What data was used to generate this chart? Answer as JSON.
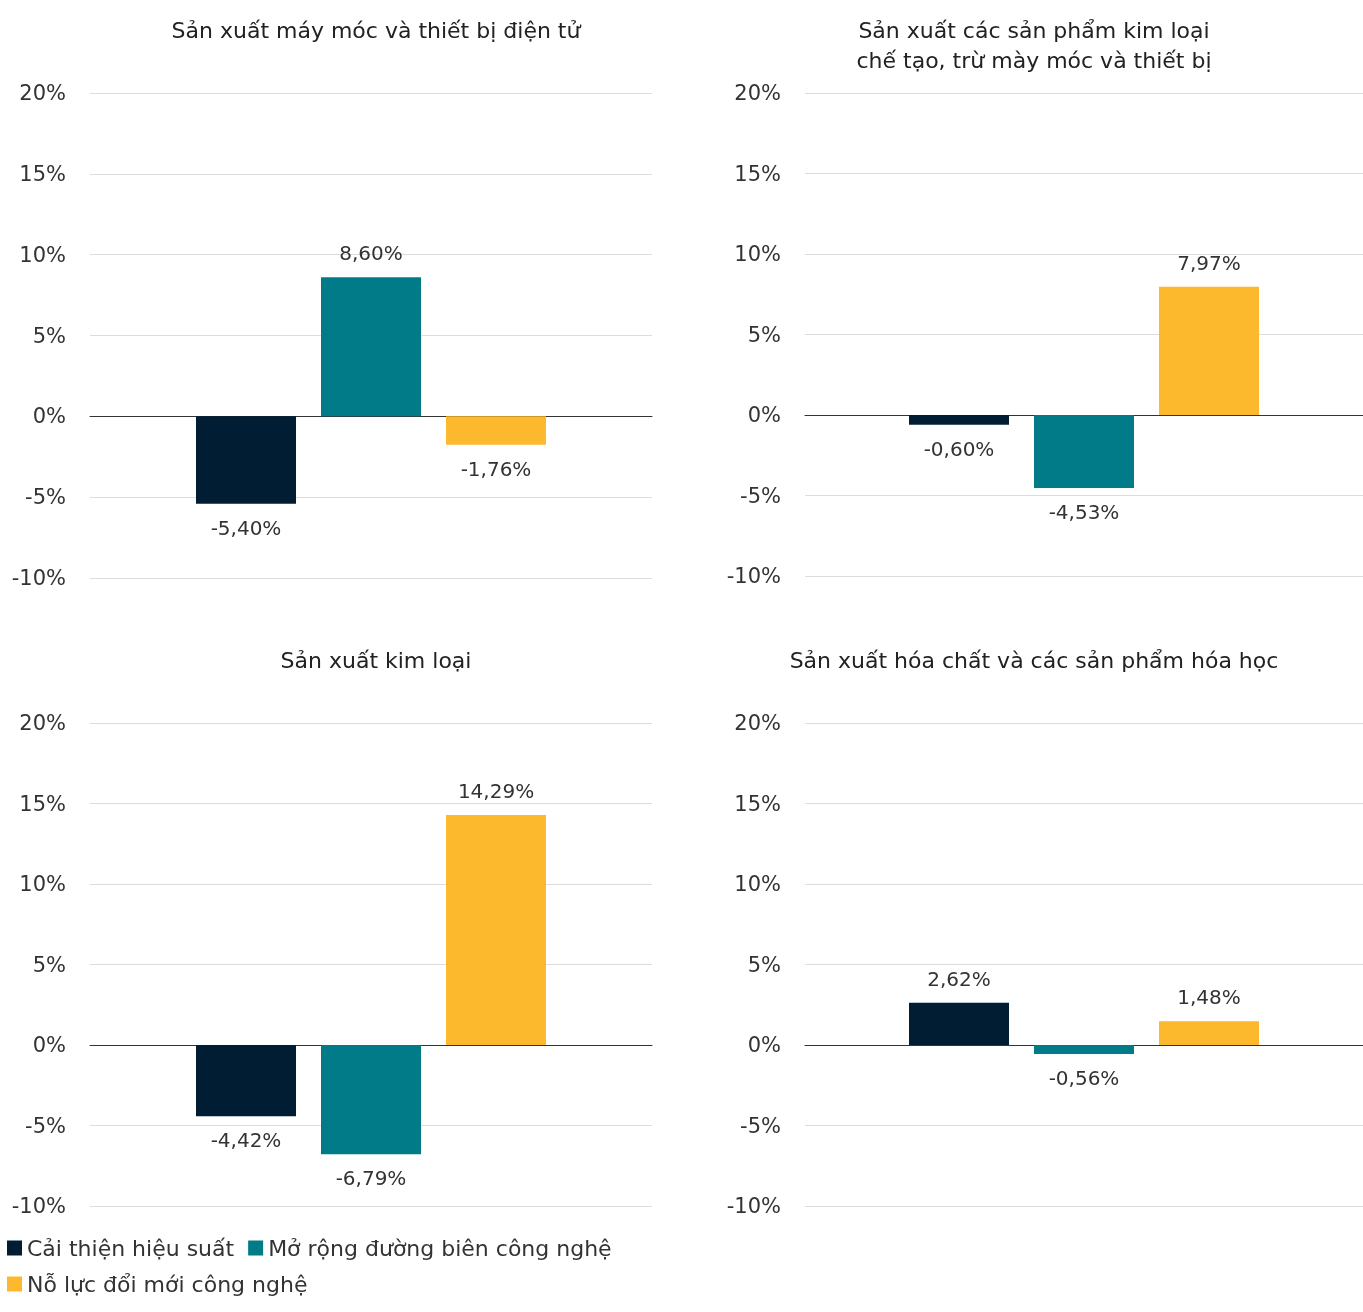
{
  "chart_data": [
    {
      "type": "bar",
      "title": "Sản xuất máy móc và thiết bị điện tử",
      "categories": [
        null
      ],
      "ylim": [
        -10,
        20
      ],
      "yticks": [
        {
          "value": -10,
          "label": "-10%"
        },
        {
          "value": -5,
          "label": "-5%"
        },
        {
          "value": 0,
          "label": "0%"
        },
        {
          "value": 5,
          "label": "5%"
        },
        {
          "value": 10,
          "label": "10%"
        },
        {
          "value": 15,
          "label": "15%"
        },
        {
          "value": 20,
          "label": "20%"
        }
      ],
      "grid": "y",
      "legend": false,
      "series": [
        {
          "color": "#001d33",
          "values": [
            -5.4
          ],
          "value_labels": [
            "-5,40%"
          ]
        },
        {
          "color": "#007b87",
          "values": [
            8.6
          ],
          "value_labels": [
            "8,60%"
          ]
        },
        {
          "color": "#fdb92e",
          "values": [
            -1.76
          ],
          "value_labels": [
            "-1,76%"
          ]
        }
      ]
    },
    {
      "type": "bar",
      "title": "Sản xuất các sản phẩm kim loại\nchế tạo, trừ mày móc và thiết bị",
      "categories": [
        null
      ],
      "ylim": [
        -10,
        20
      ],
      "yticks": [
        {
          "value": -10,
          "label": "-10%"
        },
        {
          "value": -5,
          "label": "-5%"
        },
        {
          "value": 0,
          "label": "0%"
        },
        {
          "value": 5,
          "label": "5%"
        },
        {
          "value": 10,
          "label": "10%"
        },
        {
          "value": 15,
          "label": "15%"
        },
        {
          "value": 20,
          "label": "20%"
        }
      ],
      "grid": "y",
      "legend": false,
      "series": [
        {
          "color": "#001d33",
          "values": [
            -0.6
          ],
          "value_labels": [
            "-0,60%"
          ]
        },
        {
          "color": "#007b87",
          "values": [
            -4.53
          ],
          "value_labels": [
            "-4,53%"
          ]
        },
        {
          "color": "#fdb92e",
          "values": [
            7.97
          ],
          "value_labels": [
            "7,97%"
          ]
        }
      ]
    },
    {
      "type": "bar",
      "title": "Sản xuất kim loại",
      "categories": [
        null
      ],
      "ylim": [
        -10,
        20
      ],
      "yticks": [
        {
          "value": -10,
          "label": "-10%"
        },
        {
          "value": -5,
          "label": "-5%"
        },
        {
          "value": 0,
          "label": "0%"
        },
        {
          "value": 5,
          "label": "5%"
        },
        {
          "value": 10,
          "label": "10%"
        },
        {
          "value": 15,
          "label": "15%"
        },
        {
          "value": 20,
          "label": "20%"
        }
      ],
      "grid": "y",
      "legend": "bottom",
      "series": [
        {
          "name": "Cải thiện hiệu suất",
          "color": "#001d33",
          "values": [
            -4.42
          ],
          "value_labels": [
            "-4,42%"
          ]
        },
        {
          "name": "Mở rộng đường biên công nghệ",
          "color": "#007b87",
          "values": [
            -6.79
          ],
          "value_labels": [
            "-6,79%"
          ]
        },
        {
          "name": "Nỗ lực đổi mới công nghệ",
          "color": "#fdb92e",
          "values": [
            14.29
          ],
          "value_labels": [
            "14,29%"
          ]
        }
      ]
    },
    {
      "type": "bar",
      "title": "Sản xuất hóa chất và các sản phẩm hóa học",
      "categories": [
        null
      ],
      "ylim": [
        -10,
        20
      ],
      "yticks": [
        {
          "value": -10,
          "label": "-10%"
        },
        {
          "value": -5,
          "label": "-5%"
        },
        {
          "value": 0,
          "label": "0%"
        },
        {
          "value": 5,
          "label": "5%"
        },
        {
          "value": 10,
          "label": "10%"
        },
        {
          "value": 15,
          "label": "15%"
        },
        {
          "value": 20,
          "label": "20%"
        }
      ],
      "grid": "y",
      "legend": false,
      "series": [
        {
          "color": "#001d33",
          "values": [
            2.62
          ],
          "value_labels": [
            "2,62%"
          ]
        },
        {
          "color": "#007b87",
          "values": [
            -0.56
          ],
          "value_labels": [
            "-0,56%"
          ]
        },
        {
          "color": "#fdb92e",
          "values": [
            1.48
          ],
          "value_labels": [
            "1,48%"
          ]
        }
      ]
    }
  ]
}
